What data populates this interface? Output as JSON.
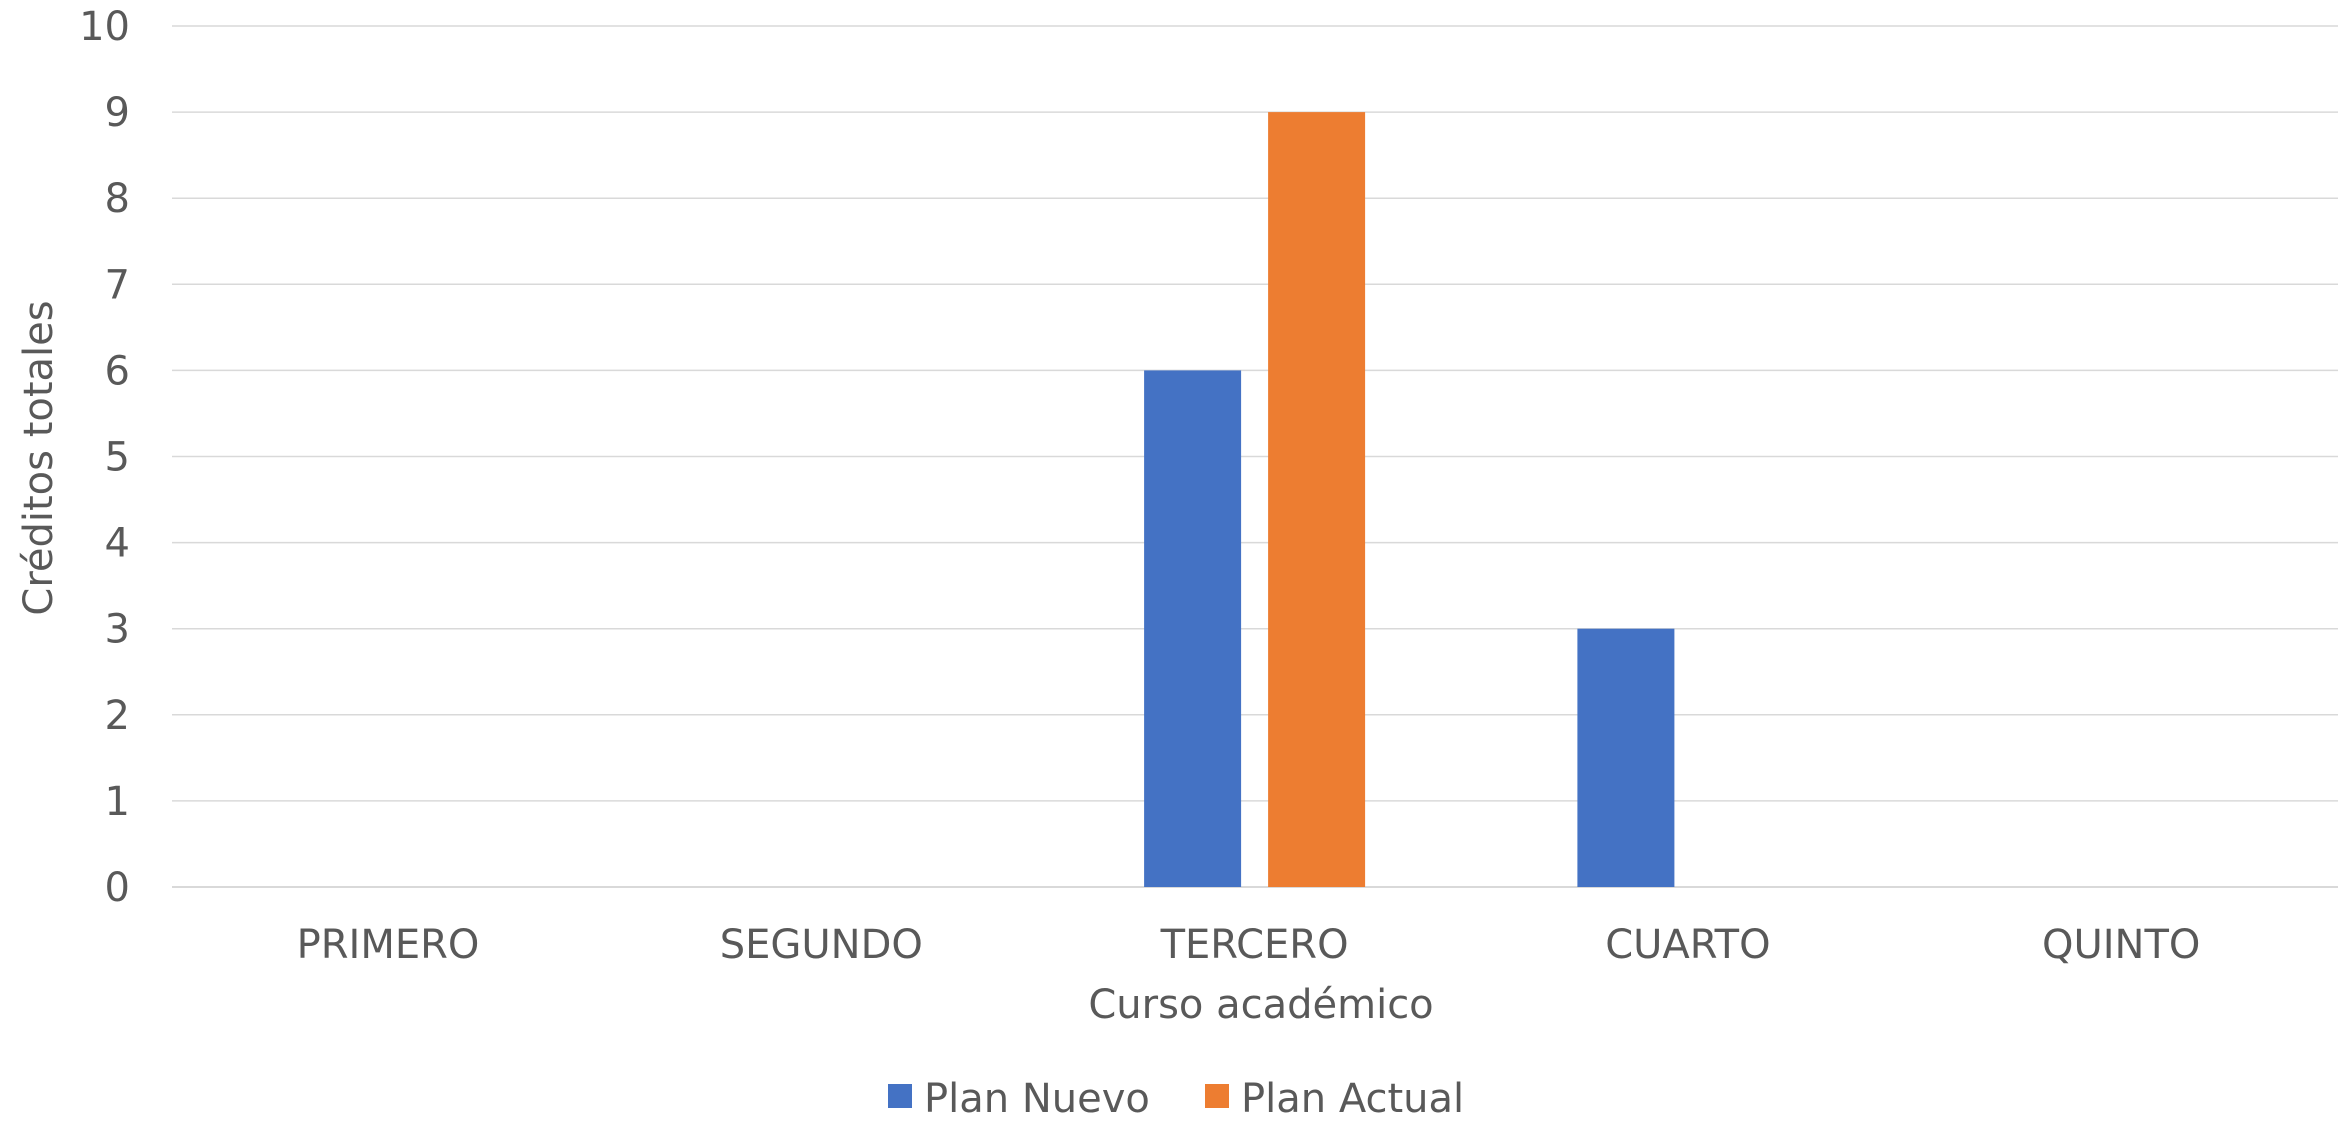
{
  "chart_data": {
    "type": "bar",
    "title": "",
    "xlabel": "Curso académico",
    "ylabel": "Créditos totales",
    "ylim": [
      0,
      10
    ],
    "yticks": [
      "0",
      "1",
      "2",
      "3",
      "4",
      "5",
      "6",
      "7",
      "8",
      "9",
      "10"
    ],
    "categories": [
      "PRIMERO",
      "SEGUNDO",
      "TERCERO",
      "CUARTO",
      "QUINTO"
    ],
    "series": [
      {
        "name": "Plan Nuevo",
        "color": "#4472c4",
        "values": [
          0,
          0,
          6,
          3,
          0
        ]
      },
      {
        "name": "Plan Actual",
        "color": "#ed7d31",
        "values": [
          0,
          0,
          9,
          0,
          0
        ]
      }
    ],
    "grid": true,
    "legend_position": "bottom"
  }
}
